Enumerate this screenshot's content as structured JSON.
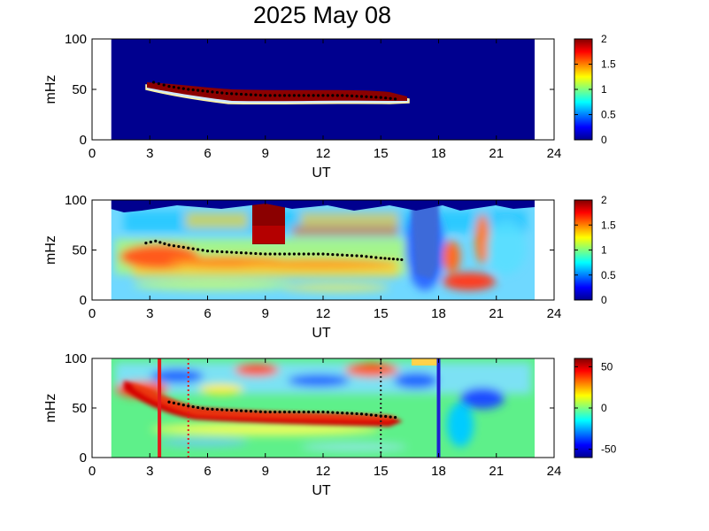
{
  "title": "2025 May 08",
  "chart_data": [
    {
      "type": "heatmap",
      "xlabel": "UT",
      "ylabel": "mHz",
      "xlim": [
        0,
        24
      ],
      "ylim": [
        0,
        100
      ],
      "xticks": [
        "0",
        "3",
        "6",
        "9",
        "12",
        "15",
        "18",
        "21",
        "24"
      ],
      "yticks": [
        "0",
        "50",
        "100"
      ],
      "data_range": [
        1,
        23
      ],
      "colorbar": {
        "min": 0,
        "max": 2,
        "ticks": [
          "0",
          "0.5",
          "1",
          "1.5",
          "2"
        ]
      },
      "background": "#00008f",
      "track": [
        [
          3.2,
          57
        ],
        [
          4,
          53
        ],
        [
          5,
          50
        ],
        [
          6,
          48
        ],
        [
          7,
          46
        ],
        [
          8,
          45
        ],
        [
          9,
          44
        ],
        [
          10,
          44
        ],
        [
          11,
          44
        ],
        [
          12,
          44
        ],
        [
          13,
          44
        ],
        [
          14,
          43
        ],
        [
          15,
          42
        ],
        [
          16,
          40
        ]
      ]
    },
    {
      "type": "heatmap",
      "xlabel": "UT",
      "ylabel": "mHz",
      "xlim": [
        0,
        24
      ],
      "ylim": [
        0,
        100
      ],
      "xticks": [
        "0",
        "3",
        "6",
        "9",
        "12",
        "15",
        "18",
        "21",
        "24"
      ],
      "yticks": [
        "0",
        "50",
        "100"
      ],
      "data_range": [
        1,
        23
      ],
      "colorbar": {
        "min": 0,
        "max": 2,
        "ticks": [
          "0",
          "0.5",
          "1",
          "1.5",
          "2"
        ]
      },
      "track": [
        [
          2.8,
          57
        ],
        [
          3.3,
          59
        ],
        [
          4,
          55
        ],
        [
          5,
          52
        ],
        [
          6,
          49
        ],
        [
          7,
          48
        ],
        [
          8,
          47
        ],
        [
          9,
          46
        ],
        [
          10,
          46
        ],
        [
          11,
          46
        ],
        [
          12,
          46
        ],
        [
          13,
          45
        ],
        [
          14,
          44
        ],
        [
          15,
          42
        ],
        [
          16.3,
          40
        ]
      ]
    },
    {
      "type": "heatmap",
      "xlabel": "UT",
      "ylabel": "mHz",
      "xlim": [
        0,
        24
      ],
      "ylim": [
        0,
        100
      ],
      "xticks": [
        "0",
        "3",
        "6",
        "9",
        "12",
        "15",
        "18",
        "21",
        "24"
      ],
      "yticks": [
        "0",
        "50",
        "100"
      ],
      "data_range": [
        1,
        23
      ],
      "colorbar": {
        "min": -60,
        "max": 60,
        "ticks": [
          "50",
          "0",
          "-50"
        ]
      },
      "track": [
        [
          4,
          56
        ],
        [
          5,
          52
        ],
        [
          6,
          49
        ],
        [
          7,
          48
        ],
        [
          8,
          47
        ],
        [
          9,
          46
        ],
        [
          10,
          46
        ],
        [
          11,
          46
        ],
        [
          12,
          46
        ],
        [
          13,
          45
        ],
        [
          14,
          44
        ],
        [
          15,
          42
        ],
        [
          16,
          40
        ]
      ],
      "markers": [
        {
          "x": 3.5,
          "color": "#e31a1c",
          "style": "solid"
        },
        {
          "x": 5.0,
          "color": "#e31a1c",
          "style": "dotted"
        },
        {
          "x": 15.0,
          "color": "#222222",
          "style": "dotted"
        },
        {
          "x": 18.0,
          "color": "#1f1fd0",
          "style": "solid"
        }
      ]
    }
  ]
}
